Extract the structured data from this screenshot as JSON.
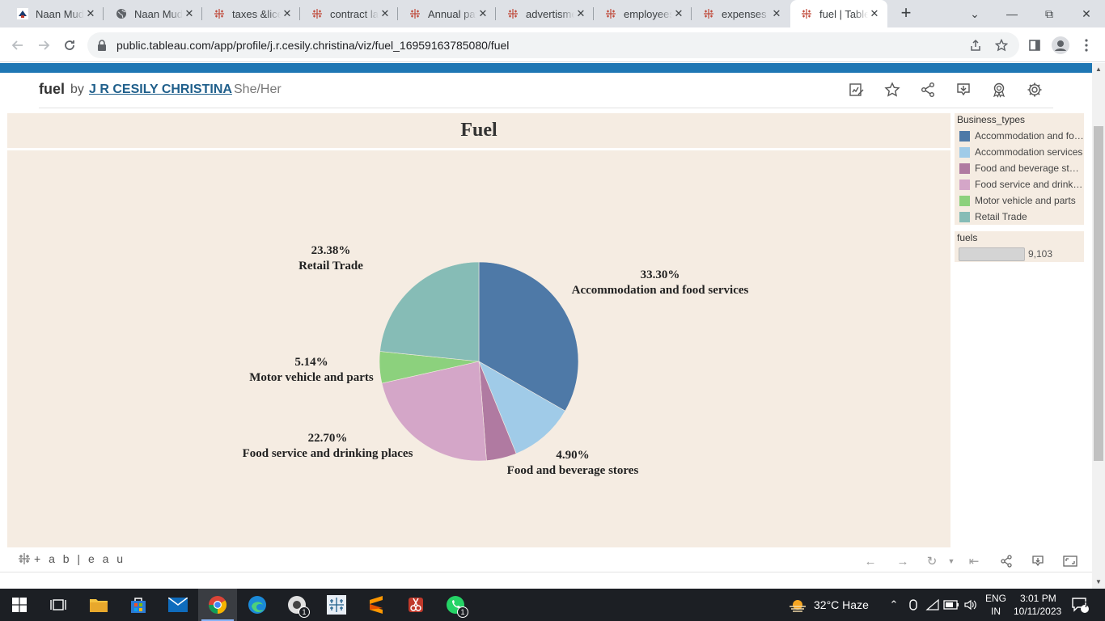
{
  "browser": {
    "tabs": [
      {
        "title": "Naan Mudhalvan",
        "icon": "naan-mudhalvan-icon"
      },
      {
        "title": "Naan Mudhalvan",
        "icon": "globe-icon"
      },
      {
        "title": "taxes &licenses",
        "icon": "tableau-icon"
      },
      {
        "title": "contract labor",
        "icon": "tableau-icon"
      },
      {
        "title": "Annual payroll",
        "icon": "tableau-icon"
      },
      {
        "title": "advertisment",
        "icon": "tableau-icon"
      },
      {
        "title": "employees",
        "icon": "tableau-icon"
      },
      {
        "title": "expenses",
        "icon": "tableau-icon"
      },
      {
        "title": "fuel | Tableau",
        "icon": "tableau-icon",
        "active": true
      }
    ],
    "url": "public.tableau.com/app/profile/j.r.cesily.christina/viz/fuel_16959163785080/fuel"
  },
  "viz_header": {
    "title": "fuel",
    "by": "by",
    "author": "J R CESILY CHRISTINA",
    "pronouns": "She/Her"
  },
  "dashboard": {
    "title": "Fuel"
  },
  "chart_data": {
    "type": "pie",
    "title": "Fuel",
    "slices": [
      {
        "label": "Accommodation and food services",
        "value": 33.3,
        "pct_label": "33.30%",
        "color": "#4e79a7"
      },
      {
        "label": "Accommodation services",
        "value": 10.58,
        "pct_label": "",
        "color": "#a0cbe8"
      },
      {
        "label": "Food and beverage stores",
        "value": 4.9,
        "pct_label": "4.90%",
        "color": "#b07aa1"
      },
      {
        "label": "Food service and drinking places",
        "value": 22.7,
        "pct_label": "22.70%",
        "color": "#d4a6c8"
      },
      {
        "label": "Motor vehicle and parts",
        "value": 5.14,
        "pct_label": "5.14%",
        "color": "#8cd17d"
      },
      {
        "label": "Retail Trade",
        "value": 23.38,
        "pct_label": "23.38%",
        "color": "#86bcb6"
      }
    ]
  },
  "legend": {
    "title": "Business_types",
    "items": [
      {
        "label": "Accommodation and food services",
        "color": "#4e79a7"
      },
      {
        "label": "Accommodation services",
        "color": "#a0cbe8"
      },
      {
        "label": "Food and beverage stores",
        "color": "#b07aa1"
      },
      {
        "label": "Food service and drinking places",
        "color": "#d4a6c8"
      },
      {
        "label": "Motor vehicle and parts",
        "color": "#8cd17d"
      },
      {
        "label": "Retail Trade",
        "color": "#86bcb6"
      }
    ]
  },
  "size_legend": {
    "title": "fuels",
    "value": "9,103"
  },
  "footer": {
    "logo": "+ a b | e a u"
  },
  "taskbar": {
    "weather": "32°C  Haze",
    "lang_top": "ENG",
    "lang_bottom": "IN",
    "time": "3:01 PM",
    "date": "10/11/2023",
    "notifications": "7",
    "chrome_badge": "1",
    "whatsapp_badge": "1"
  }
}
